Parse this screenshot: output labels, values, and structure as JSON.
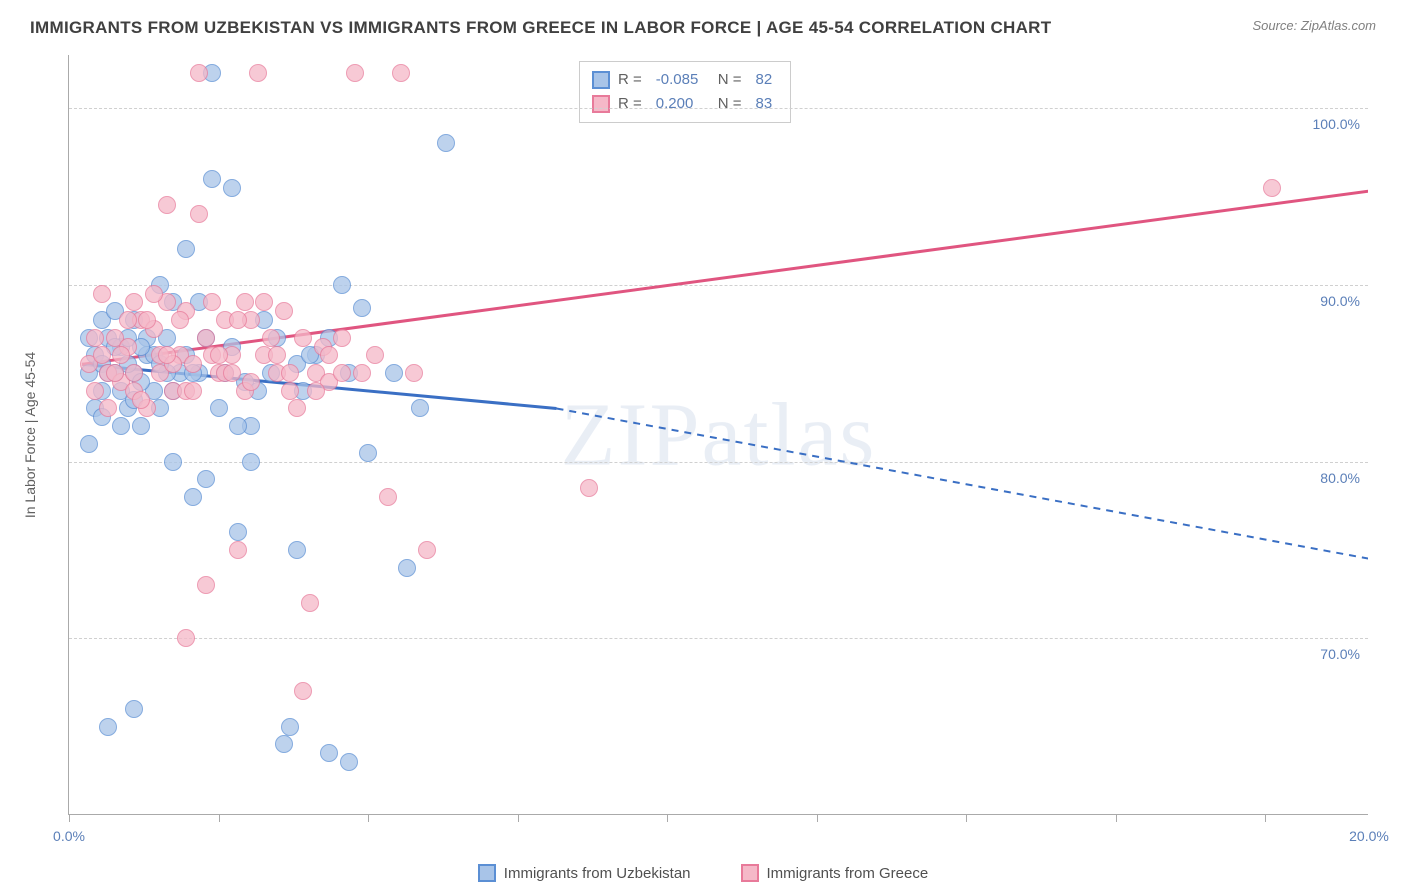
{
  "title": "IMMIGRANTS FROM UZBEKISTAN VS IMMIGRANTS FROM GREECE IN LABOR FORCE | AGE 45-54 CORRELATION CHART",
  "source": "Source: ZipAtlas.com",
  "watermark": "ZIPatlas",
  "y_axis_label": "In Labor Force | Age 45-54",
  "chart": {
    "type": "scatter",
    "background_color": "#ffffff",
    "grid_color": "#d0d0d0",
    "axis_color": "#aaaaaa",
    "tick_label_color": "#5b7fb8",
    "xlim": [
      0,
      20
    ],
    "ylim": [
      60,
      103
    ],
    "y_ticks": [
      70,
      80,
      90,
      100
    ],
    "y_tick_labels": [
      "70.0%",
      "80.0%",
      "90.0%",
      "100.0%"
    ],
    "x_tick_positions": [
      0,
      2.3,
      4.6,
      6.9,
      9.2,
      11.5,
      13.8,
      16.1,
      18.4
    ],
    "x_tick_labels": {
      "0": "0.0%",
      "20": "20.0%"
    }
  },
  "series": [
    {
      "name": "Immigrants from Uzbekistan",
      "fill_color": "#a8c4e8",
      "stroke_color": "#5b8fd4",
      "trend_color": "#3a6fc4",
      "trend": {
        "x1": 0.2,
        "y1": 85.5,
        "x2_solid": 7.5,
        "y2_solid": 83.0,
        "x2_dash": 20,
        "y2_dash": 74.5
      },
      "R": "-0.085",
      "N": "82",
      "points": [
        [
          0.3,
          85
        ],
        [
          0.4,
          86
        ],
        [
          0.5,
          84
        ],
        [
          0.5,
          85.5
        ],
        [
          0.6,
          87
        ],
        [
          0.7,
          85
        ],
        [
          0.8,
          86.5
        ],
        [
          0.8,
          84
        ],
        [
          0.9,
          83
        ],
        [
          1.0,
          85
        ],
        [
          1.0,
          88
        ],
        [
          1.1,
          82
        ],
        [
          1.2,
          86
        ],
        [
          1.3,
          84
        ],
        [
          1.4,
          90
        ],
        [
          1.5,
          87
        ],
        [
          1.6,
          80
        ],
        [
          1.7,
          85
        ],
        [
          1.8,
          92
        ],
        [
          1.9,
          78
        ],
        [
          2.0,
          89
        ],
        [
          2.1,
          79
        ],
        [
          2.2,
          96
        ],
        [
          2.2,
          102
        ],
        [
          2.5,
          95.5
        ],
        [
          2.6,
          76
        ],
        [
          2.8,
          82
        ],
        [
          3.0,
          88
        ],
        [
          3.2,
          87
        ],
        [
          3.4,
          65
        ],
        [
          3.5,
          75
        ],
        [
          3.6,
          84
        ],
        [
          3.8,
          86
        ],
        [
          4.0,
          63.5
        ],
        [
          4.2,
          90
        ],
        [
          4.5,
          88.7
        ],
        [
          4.6,
          80.5
        ],
        [
          5.0,
          85
        ],
        [
          5.2,
          74
        ],
        [
          5.4,
          83
        ],
        [
          0.4,
          83
        ],
        [
          0.6,
          85
        ],
        [
          0.7,
          86.5
        ],
        [
          0.9,
          87
        ],
        [
          1.1,
          84.5
        ],
        [
          1.3,
          86
        ],
        [
          1.5,
          85
        ],
        [
          0.5,
          88
        ],
        [
          0.8,
          82
        ],
        [
          1.0,
          83.5
        ],
        [
          1.2,
          87
        ],
        [
          1.4,
          85.5
        ],
        [
          1.6,
          84
        ],
        [
          1.8,
          86
        ],
        [
          2.0,
          85
        ],
        [
          2.3,
          83
        ],
        [
          2.5,
          86.5
        ],
        [
          2.7,
          84.5
        ],
        [
          0.3,
          87
        ],
        [
          0.5,
          82.5
        ],
        [
          0.7,
          88.5
        ],
        [
          0.9,
          85.5
        ],
        [
          1.1,
          86.5
        ],
        [
          1.4,
          83
        ],
        [
          1.6,
          89
        ],
        [
          1.9,
          85
        ],
        [
          2.1,
          87
        ],
        [
          2.4,
          85
        ],
        [
          2.6,
          82
        ],
        [
          2.9,
          84
        ],
        [
          3.1,
          85
        ],
        [
          3.3,
          64
        ],
        [
          3.5,
          85.5
        ],
        [
          3.7,
          86
        ],
        [
          4.0,
          87
        ],
        [
          4.3,
          85
        ],
        [
          1.0,
          66
        ],
        [
          5.8,
          98
        ],
        [
          0.6,
          65
        ],
        [
          4.3,
          63
        ],
        [
          2.8,
          80
        ],
        [
          0.3,
          81
        ]
      ]
    },
    {
      "name": "Immigrants from Greece",
      "fill_color": "#f5b8c8",
      "stroke_color": "#e87a9a",
      "trend_color": "#e05580",
      "trend": {
        "x1": 0.2,
        "y1": 85.5,
        "x2_solid": 20,
        "y2_solid": 95.3,
        "x2_dash": 20,
        "y2_dash": 95.3
      },
      "R": "0.200",
      "N": "83",
      "points": [
        [
          0.3,
          85.5
        ],
        [
          0.4,
          84
        ],
        [
          0.5,
          86
        ],
        [
          0.6,
          85
        ],
        [
          0.7,
          87
        ],
        [
          0.8,
          84.5
        ],
        [
          0.9,
          86.5
        ],
        [
          1.0,
          85
        ],
        [
          1.1,
          88
        ],
        [
          1.2,
          83
        ],
        [
          1.3,
          87.5
        ],
        [
          1.4,
          85
        ],
        [
          1.5,
          89
        ],
        [
          1.6,
          84
        ],
        [
          1.7,
          86
        ],
        [
          1.8,
          88.5
        ],
        [
          1.9,
          85.5
        ],
        [
          2.0,
          94
        ],
        [
          2.1,
          87
        ],
        [
          2.2,
          89
        ],
        [
          2.3,
          85
        ],
        [
          2.4,
          88
        ],
        [
          2.5,
          86
        ],
        [
          2.6,
          75
        ],
        [
          2.7,
          84
        ],
        [
          2.8,
          88
        ],
        [
          2.9,
          102
        ],
        [
          3.0,
          86
        ],
        [
          3.1,
          87
        ],
        [
          3.2,
          85
        ],
        [
          3.3,
          88.5
        ],
        [
          3.4,
          84
        ],
        [
          3.5,
          83
        ],
        [
          3.6,
          67
        ],
        [
          3.7,
          72
        ],
        [
          3.8,
          85
        ],
        [
          3.9,
          86.5
        ],
        [
          4.0,
          84.5
        ],
        [
          4.2,
          87
        ],
        [
          4.4,
          102
        ],
        [
          4.5,
          85
        ],
        [
          4.7,
          86
        ],
        [
          4.9,
          78
        ],
        [
          5.1,
          102
        ],
        [
          5.3,
          85
        ],
        [
          5.5,
          75
        ],
        [
          8.0,
          78.5
        ],
        [
          18.5,
          95.5
        ],
        [
          0.4,
          87
        ],
        [
          0.6,
          83
        ],
        [
          0.8,
          86
        ],
        [
          1.0,
          84
        ],
        [
          1.2,
          88
        ],
        [
          1.4,
          86
        ],
        [
          1.6,
          85.5
        ],
        [
          1.8,
          84
        ],
        [
          2.0,
          102
        ],
        [
          2.2,
          86
        ],
        [
          2.4,
          85
        ],
        [
          2.6,
          88
        ],
        [
          2.8,
          84.5
        ],
        [
          3.0,
          89
        ],
        [
          3.2,
          86
        ],
        [
          3.4,
          85
        ],
        [
          3.6,
          87
        ],
        [
          3.8,
          84
        ],
        [
          4.0,
          86
        ],
        [
          4.2,
          85
        ],
        [
          0.5,
          89.5
        ],
        [
          0.7,
          85
        ],
        [
          0.9,
          88
        ],
        [
          1.1,
          83.5
        ],
        [
          1.3,
          89.5
        ],
        [
          1.5,
          86
        ],
        [
          1.7,
          88
        ],
        [
          1.9,
          84
        ],
        [
          2.1,
          73
        ],
        [
          2.3,
          86
        ],
        [
          2.5,
          85
        ],
        [
          2.7,
          89
        ],
        [
          1.8,
          70
        ],
        [
          1.0,
          89
        ],
        [
          1.5,
          94.5
        ]
      ]
    }
  ],
  "stats_legend": {
    "R_label": "R =",
    "N_label": "N ="
  }
}
